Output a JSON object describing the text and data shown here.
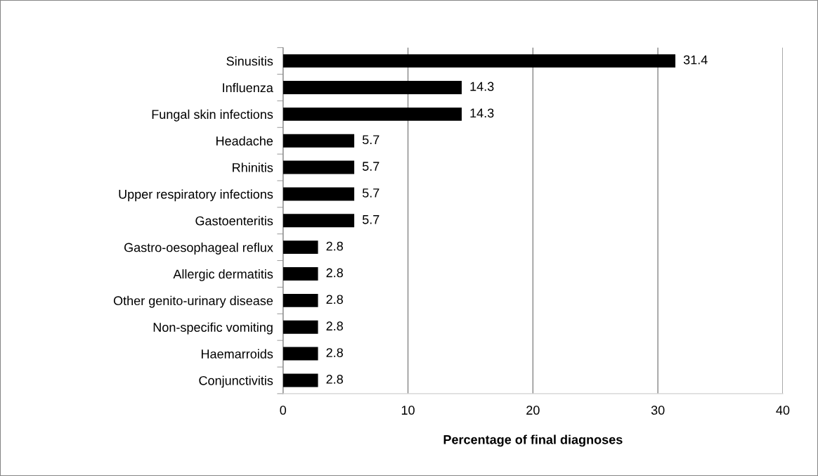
{
  "chart_data": {
    "type": "bar",
    "orientation": "horizontal",
    "xlabel": "Percentage of final diagnoses",
    "categories": [
      "Sinusitis",
      "Influenza",
      "Fungal skin infections",
      "Headache",
      "Rhinitis",
      "Upper respiratory infections",
      "Gastoenteritis",
      "Gastro-oesophageal reflux",
      "Allergic dermatitis",
      "Other genito-urinary disease",
      "Non-specific vomiting",
      "Haemarroids",
      "Conjunctivitis"
    ],
    "values": [
      31.4,
      14.3,
      14.3,
      5.7,
      5.7,
      5.7,
      5.7,
      2.8,
      2.8,
      2.8,
      2.8,
      2.8,
      2.8
    ],
    "color": "#000000",
    "data_labels": true,
    "xlim": [
      0,
      40
    ],
    "xticks": [
      0,
      10,
      20,
      30,
      40
    ],
    "grid": "x",
    "legend": false
  }
}
